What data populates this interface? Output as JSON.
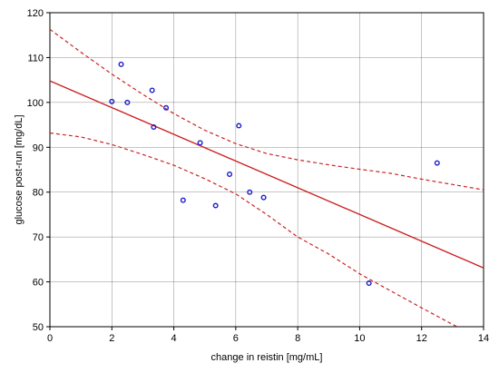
{
  "chart_data": {
    "type": "scatter",
    "title": "",
    "xlabel": "change in reistin [mg/mL]",
    "ylabel": "glucose post-run [mg/dL]",
    "xlim": [
      0,
      14
    ],
    "ylim": [
      50,
      120
    ],
    "xticks": [
      0,
      2,
      4,
      6,
      8,
      10,
      12,
      14
    ],
    "yticks": [
      50,
      60,
      70,
      80,
      90,
      100,
      110,
      120
    ],
    "grid": true,
    "series": [
      {
        "kind": "points",
        "marker": "open-circle",
        "color": "#1a1acc",
        "x": [
          2.0,
          2.3,
          2.5,
          3.3,
          3.35,
          3.75,
          4.3,
          4.85,
          5.35,
          5.8,
          6.1,
          6.45,
          6.9,
          10.3,
          12.5
        ],
        "y": [
          100.2,
          108.5,
          100.0,
          102.7,
          94.5,
          98.8,
          78.2,
          91.0,
          77.0,
          84.0,
          94.8,
          80.0,
          78.8,
          59.7,
          86.5
        ]
      },
      {
        "kind": "regression-line",
        "color": "#cc2222",
        "x": [
          0,
          14
        ],
        "y": [
          104.8,
          63.1
        ]
      },
      {
        "kind": "confidence-upper",
        "color": "#cc2222",
        "style": "dashed",
        "x": [
          0,
          1,
          2,
          3,
          4,
          5,
          6,
          7,
          8,
          9,
          10,
          11,
          12,
          13,
          14
        ],
        "y": [
          116.3,
          111.2,
          106.3,
          101.8,
          97.5,
          93.8,
          90.8,
          88.6,
          87.2,
          86.1,
          85.1,
          84.2,
          82.9,
          81.7,
          80.5
        ]
      },
      {
        "kind": "confidence-lower",
        "color": "#cc2222",
        "style": "dashed",
        "x": [
          0,
          1,
          2,
          3,
          4,
          5,
          6,
          7,
          8,
          9,
          10,
          11,
          12,
          13,
          14
        ],
        "y": [
          93.2,
          92.3,
          90.6,
          88.4,
          86.0,
          83.0,
          79.6,
          75.0,
          70.0,
          66.2,
          61.8,
          58.0,
          54.2,
          50.5,
          47.0
        ]
      }
    ]
  }
}
